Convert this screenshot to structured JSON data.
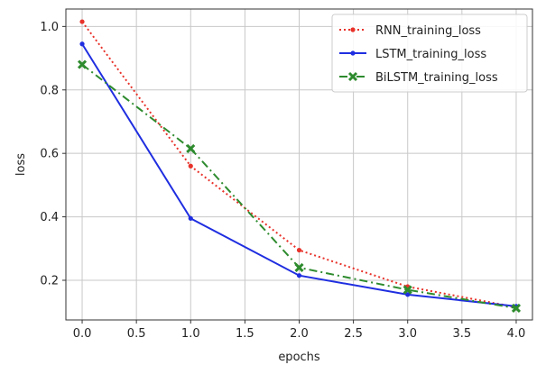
{
  "chart_data": {
    "type": "line",
    "title": "",
    "xlabel": "epochs",
    "ylabel": "loss",
    "xlim": [
      -0.15,
      4.15
    ],
    "ylim": [
      0.075,
      1.055
    ],
    "x_ticks": [
      0.0,
      0.5,
      1.0,
      1.5,
      2.0,
      2.5,
      3.0,
      3.5,
      4.0
    ],
    "x_tick_labels": [
      "0.0",
      "0.5",
      "1.0",
      "1.5",
      "2.0",
      "2.5",
      "3.0",
      "3.5",
      "4.0"
    ],
    "y_ticks": [
      0.2,
      0.4,
      0.6,
      0.8,
      1.0
    ],
    "y_tick_labels": [
      "0.2",
      "0.4",
      "0.6",
      "0.8",
      "1.0"
    ],
    "grid": true,
    "legend_position": "top-right",
    "x": [
      0,
      1,
      2,
      3,
      4
    ],
    "series": [
      {
        "name": "RNN_training_loss",
        "values": [
          1.015,
          0.56,
          0.295,
          0.18,
          0.115
        ],
        "color": "#e8322a",
        "linestyle": "dotted",
        "marker": "point"
      },
      {
        "name": "LSTM_training_loss",
        "values": [
          0.945,
          0.395,
          0.215,
          0.155,
          0.118
        ],
        "color": "#1f2ee0",
        "linestyle": "solid",
        "marker": "point"
      },
      {
        "name": "BiLSTM_training_loss",
        "values": [
          0.88,
          0.615,
          0.24,
          0.17,
          0.112
        ],
        "color": "#2e8b2e",
        "linestyle": "dashdot",
        "marker": "x"
      }
    ]
  }
}
